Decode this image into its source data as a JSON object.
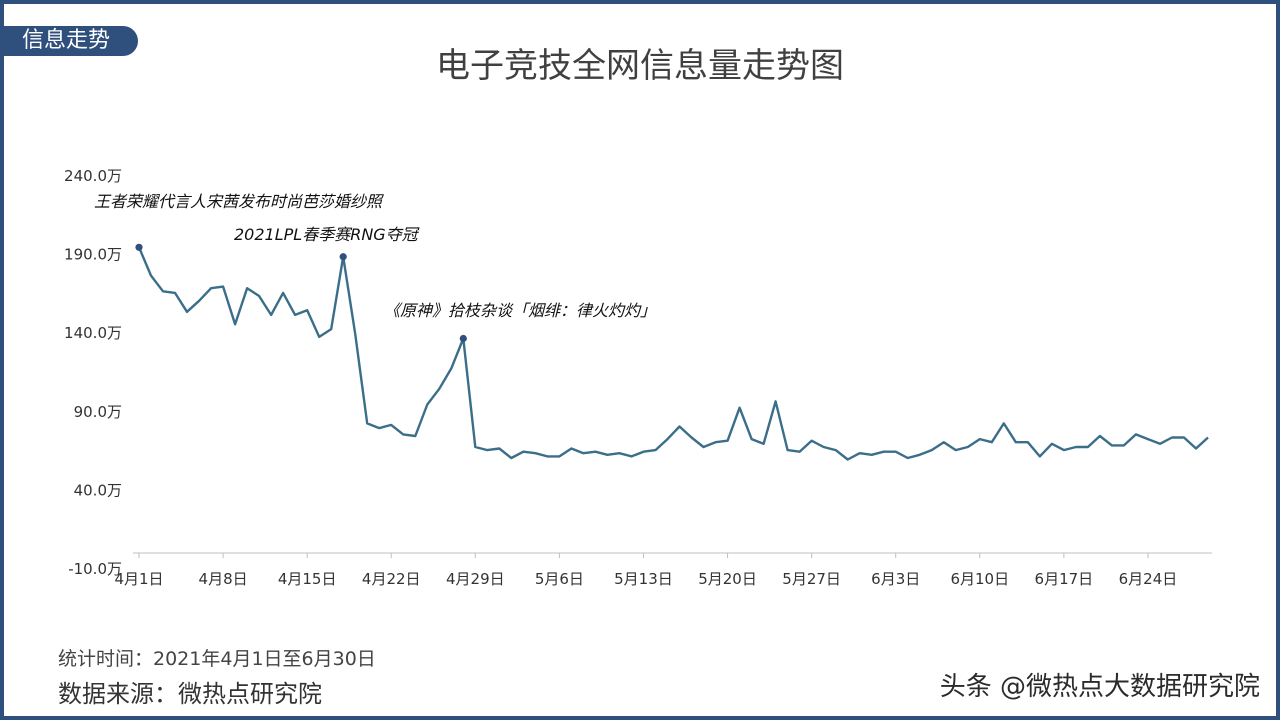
{
  "section_tag": "信息走势",
  "footer": {
    "period": "统计时间：2021年4月1日至6月30日",
    "source": "数据来源：微热点研究院"
  },
  "watermark": "头条 @微热点大数据研究院",
  "colors": {
    "line": "#3b6e89",
    "marker": "#2f4f7c",
    "axis": "#bfbfbf",
    "frame": "#2f4f7c"
  },
  "chart_data": {
    "type": "line",
    "title": "电子竞技全网信息量走势图",
    "xlabel": "",
    "ylabel": "",
    "ylim": [
      -10.0,
      240.0
    ],
    "y_ticks": [
      "240.0万",
      "190.0万",
      "140.0万",
      "90.0万",
      "40.0万",
      "-10.0万"
    ],
    "y_tick_values": [
      240,
      190,
      140,
      90,
      40,
      -10
    ],
    "x_start": "2021-04-01",
    "x_end": "2021-06-30",
    "x_ticks": [
      "4月1日",
      "4月8日",
      "4月15日",
      "4月22日",
      "4月29日",
      "5月6日",
      "5月13日",
      "5月20日",
      "5月27日",
      "6月3日",
      "6月10日",
      "6月17日",
      "6月24日"
    ],
    "x_tick_days": [
      0,
      7,
      14,
      21,
      28,
      35,
      42,
      49,
      56,
      63,
      70,
      77,
      84
    ],
    "grid": false,
    "legend": "none",
    "series": [
      {
        "name": "",
        "values": [
          194,
          176,
          166,
          165,
          153,
          160,
          168,
          169,
          145,
          168,
          163,
          151,
          165,
          151,
          154,
          137,
          142,
          188,
          139,
          82,
          79,
          81,
          75,
          74,
          94,
          104,
          117,
          136,
          67,
          65,
          66,
          60,
          64,
          63,
          61,
          61,
          66,
          63,
          64,
          62,
          63,
          61,
          64,
          65,
          72,
          80,
          73,
          67,
          70,
          71,
          92,
          72,
          69,
          96,
          65,
          64,
          71,
          67,
          65,
          59,
          63,
          62,
          64,
          64,
          60,
          62,
          65,
          70,
          65,
          67,
          72,
          70,
          82,
          70,
          70,
          61,
          69,
          65,
          67,
          67,
          74,
          68,
          68,
          75,
          72,
          69,
          73,
          73,
          66,
          73
        ]
      }
    ],
    "highlights": [
      {
        "day": 0,
        "value": 194
      },
      {
        "day": 17,
        "value": 188
      },
      {
        "day": 27,
        "value": 136
      }
    ],
    "annotations": [
      "王者荣耀代言人宋茜发布时尚芭莎婚纱照",
      "2021LPL春季赛RNG夺冠",
      "《原神》拾枝杂谈「烟绯：律火灼灼」"
    ]
  }
}
